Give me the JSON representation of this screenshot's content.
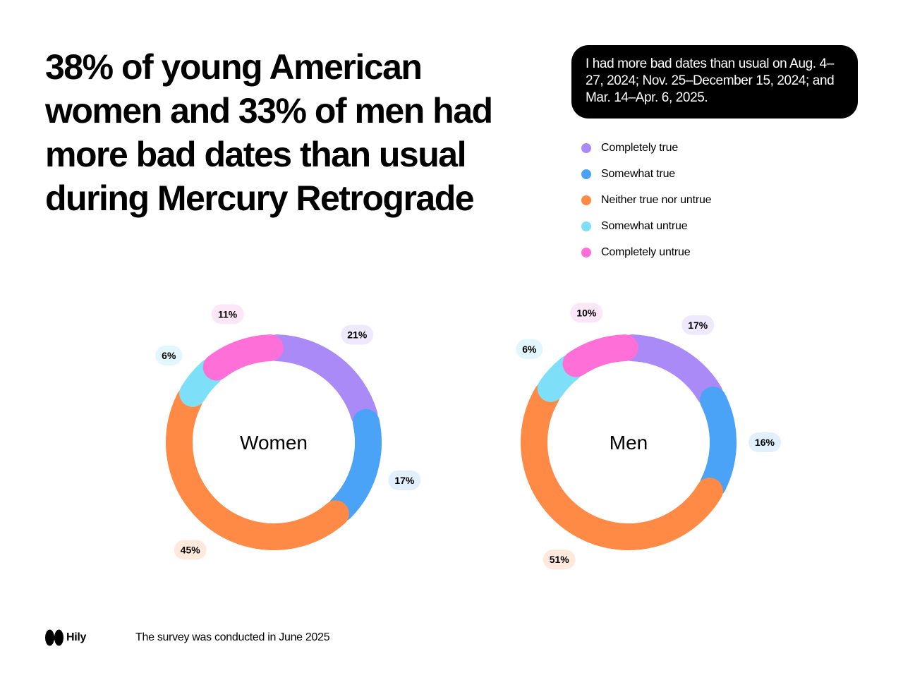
{
  "headline": "38% of young American women and 33% of men had more bad dates than usual during Mercury Retrograde",
  "statement": "I had more bad dates than usual on Aug. 4–27, 2024; Nov. 25–December 15, 2024; and Mar. 14–Apr. 6, 2025.",
  "legend": [
    {
      "label": "Completely true",
      "color": "#a98af7"
    },
    {
      "label": "Somewhat true",
      "color": "#4aa3f6"
    },
    {
      "label": "Neither true nor untrue",
      "color": "#ff8a45"
    },
    {
      "label": "Somewhat untrue",
      "color": "#7ee0f8"
    },
    {
      "label": "Completely untrue",
      "color": "#ff6fd8"
    }
  ],
  "chart_data": [
    {
      "type": "pie",
      "title": "Women",
      "categories": [
        "Completely true",
        "Somewhat true",
        "Neither true nor untrue",
        "Somewhat untrue",
        "Completely untrue"
      ],
      "values": [
        21,
        17,
        45,
        6,
        11
      ],
      "labels": [
        "21%",
        "17%",
        "45%",
        "6%",
        "11%"
      ]
    },
    {
      "type": "pie",
      "title": "Men",
      "categories": [
        "Completely true",
        "Somewhat true",
        "Neither true nor untrue",
        "Somewhat untrue",
        "Completely untrue"
      ],
      "values": [
        17,
        16,
        51,
        6,
        10
      ],
      "labels": [
        "17%",
        "16%",
        "51%",
        "6%",
        "10%"
      ]
    }
  ],
  "colors": {
    "slices": [
      "#a98af7",
      "#4aa3f6",
      "#ff8a45",
      "#7ee0f8",
      "#ff6fd8"
    ],
    "pills": [
      "#efe9fe",
      "#e2effd",
      "#ffe9dd",
      "#e2f6fd",
      "#fde6f8"
    ]
  },
  "footer": {
    "logo_text": "Hily",
    "note": "The survey was conducted in June 2025"
  }
}
